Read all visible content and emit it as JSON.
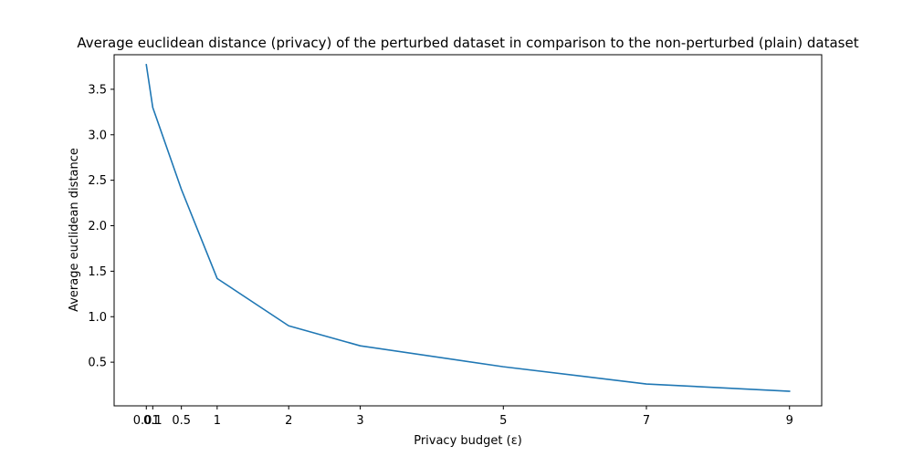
{
  "chart_data": {
    "type": "line",
    "title": "Average euclidean distance (privacy) of the perturbed dataset in comparison to the non-perturbed (plain) dataset",
    "xlabel": "Privacy budget (ε)",
    "ylabel": "Average euclidean distance",
    "x": [
      0.01,
      0.1,
      0.5,
      1,
      2,
      3,
      5,
      7,
      9
    ],
    "x_tick_labels": [
      "0.01",
      "0.1",
      "0.5",
      "1",
      "2",
      "3",
      "5",
      "7",
      "9"
    ],
    "y_ticks": [
      0.5,
      1.0,
      1.5,
      2.0,
      2.5,
      3.0,
      3.5
    ],
    "y_tick_labels": [
      "0.5",
      "1.0",
      "1.5",
      "2.0",
      "2.5",
      "3.0",
      "3.5"
    ],
    "xlim": [
      -0.44,
      9.45
    ],
    "ylim": [
      0.02,
      3.88
    ],
    "grid": false,
    "series": [
      {
        "name": "",
        "color": "#1f77b4",
        "values": [
          3.77,
          3.3,
          2.4,
          1.42,
          0.9,
          0.68,
          0.45,
          0.26,
          0.18
        ]
      }
    ]
  }
}
